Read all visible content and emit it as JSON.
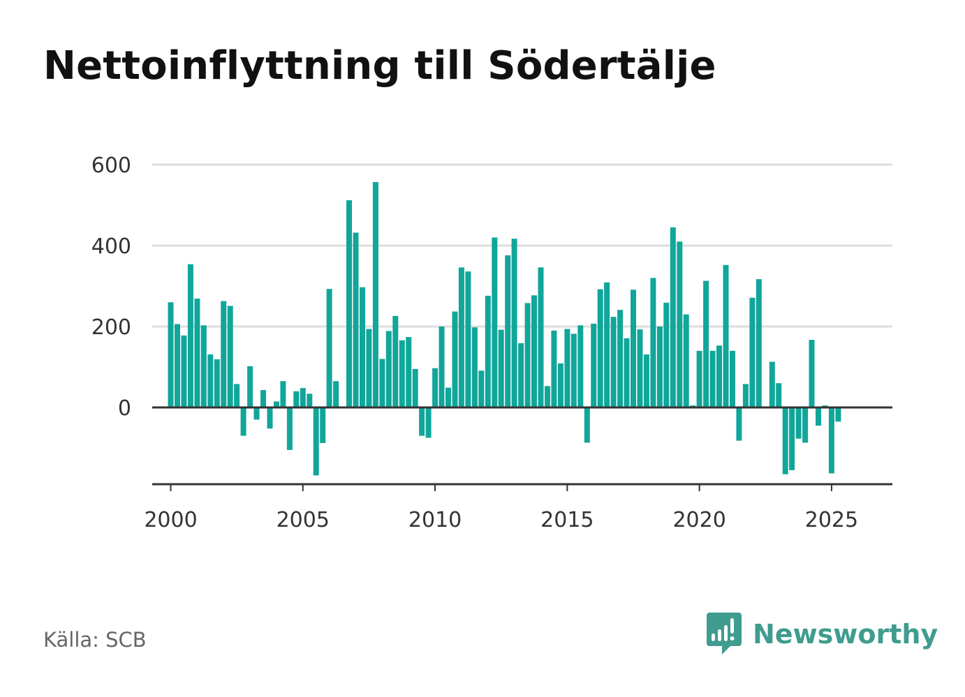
{
  "title": "Nettoinflyttning till Södertälje",
  "source": "Källa: SCB",
  "brand": {
    "name": "Newsworthy",
    "icon": "bar-chart-speech-bubble-icon"
  },
  "colors": {
    "bar": "#11a69a",
    "grid": "#dddddd",
    "axis": "#333333",
    "brand": "#3f9c8f",
    "tick_text": "#333333"
  },
  "chart_data": {
    "type": "bar",
    "title": "Nettoinflyttning till Södertälje",
    "xlabel": "",
    "ylabel": "",
    "ylim": [
      -190,
      620
    ],
    "y_ticks": [
      0,
      200,
      400,
      600
    ],
    "x_ticks": [
      2000,
      2005,
      2010,
      2015,
      2020,
      2025
    ],
    "xlim": [
      1999.3,
      2027.3
    ],
    "grid": true,
    "frequency": "quarterly",
    "x": [
      2000.0,
      2000.25,
      2000.5,
      2000.75,
      2001.0,
      2001.25,
      2001.5,
      2001.75,
      2002.0,
      2002.25,
      2002.5,
      2002.75,
      2003.0,
      2003.25,
      2003.5,
      2003.75,
      2004.0,
      2004.25,
      2004.5,
      2004.75,
      2005.0,
      2005.25,
      2005.5,
      2005.75,
      2006.0,
      2006.25,
      2006.5,
      2006.75,
      2007.0,
      2007.25,
      2007.5,
      2007.75,
      2008.0,
      2008.25,
      2008.5,
      2008.75,
      2009.0,
      2009.25,
      2009.5,
      2009.75,
      2010.0,
      2010.25,
      2010.5,
      2010.75,
      2011.0,
      2011.25,
      2011.5,
      2011.75,
      2012.0,
      2012.25,
      2012.5,
      2012.75,
      2013.0,
      2013.25,
      2013.5,
      2013.75,
      2014.0,
      2014.25,
      2014.5,
      2014.75,
      2015.0,
      2015.25,
      2015.5,
      2015.75,
      2016.0,
      2016.25,
      2016.5,
      2016.75,
      2017.0,
      2017.25,
      2017.5,
      2017.75,
      2018.0,
      2018.25,
      2018.5,
      2018.75,
      2019.0,
      2019.25,
      2019.5,
      2019.75,
      2020.0,
      2020.25,
      2020.5,
      2020.75,
      2021.0,
      2021.25,
      2021.5,
      2021.75,
      2022.0,
      2022.25,
      2022.5,
      2022.75,
      2023.0,
      2023.25,
      2023.5,
      2023.75,
      2024.0,
      2024.25,
      2024.5,
      2024.75,
      2025.0,
      2025.25
    ],
    "values": [
      260,
      206,
      178,
      354,
      269,
      203,
      131,
      119,
      263,
      251,
      58,
      -70,
      102,
      -30,
      43,
      -52,
      15,
      65,
      -105,
      40,
      48,
      34,
      -168,
      -88,
      293,
      65,
      0,
      512,
      432,
      297,
      194,
      557,
      120,
      189,
      226,
      166,
      174,
      95,
      -70,
      -75,
      97,
      200,
      49,
      237,
      346,
      336,
      198,
      91,
      276,
      420,
      192,
      376,
      417,
      159,
      258,
      277,
      346,
      53,
      190,
      109,
      194,
      182,
      203,
      -87,
      207,
      292,
      309,
      224,
      241,
      171,
      291,
      193,
      131,
      320,
      200,
      259,
      445,
      410,
      230,
      5,
      140,
      313,
      140,
      153,
      352,
      140,
      -82,
      58,
      271,
      317,
      0,
      113,
      60,
      -165,
      -155,
      -77,
      -87,
      167,
      -45,
      5,
      -163,
      -35
    ]
  }
}
